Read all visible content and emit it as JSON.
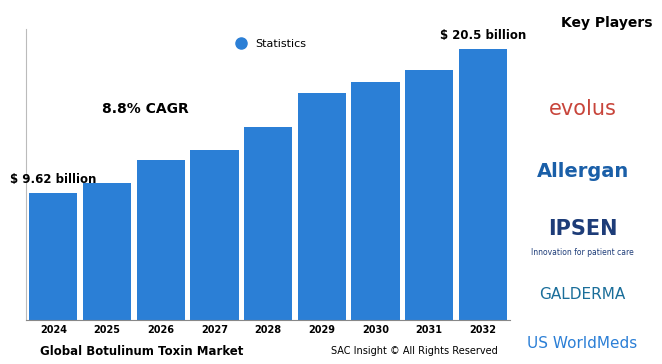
{
  "chart_data": {
    "type": "bar",
    "title": "Global Botulinum Toxin Market",
    "categories": [
      "2024",
      "2025",
      "2026",
      "2027",
      "2028",
      "2029",
      "2030",
      "2031",
      "2032"
    ],
    "series": [
      {
        "name": "Statistics",
        "color": "#2b7fd6",
        "values": [
          9.62,
          10.4,
          12.1,
          12.9,
          14.6,
          17.2,
          18.0,
          18.9,
          20.5
        ],
        "value_labels": [
          "$ 9.62 billion",
          null,
          null,
          null,
          null,
          null,
          null,
          null,
          "$ 20.5 billion"
        ]
      }
    ],
    "ylim": [
      0,
      22
    ],
    "tick_labels": "x",
    "legend": "upper center",
    "data_labels": true,
    "annotations": [
      "8.8% CAGR",
      "Key Players",
      "evolus",
      "Allergan",
      "IPSEN",
      "Innovation for patient care",
      "GALDERMA",
      "US WorldMeds",
      "SAC Insight © All Rights Reserved"
    ]
  }
}
